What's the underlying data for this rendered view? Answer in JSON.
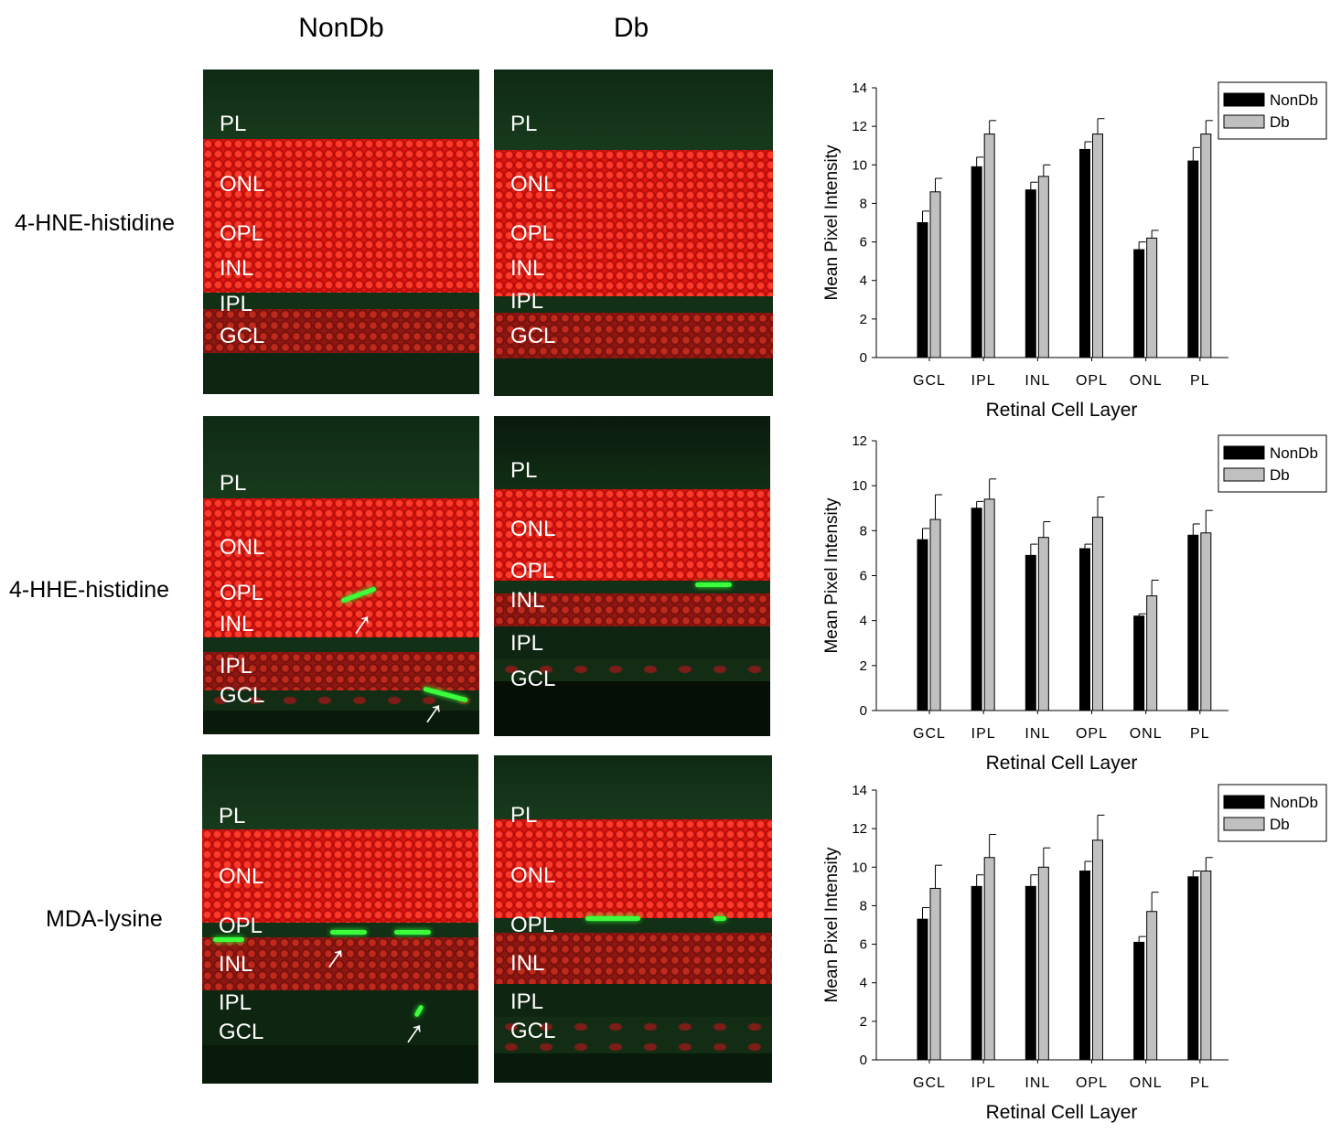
{
  "column_headers": [
    "NonDb",
    "Db"
  ],
  "row_labels": [
    "4-HNE-histidine",
    "4-HHE-histidine",
    "MDA-lysine"
  ],
  "layer_labels": [
    "PL",
    "ONL",
    "OPL",
    "INL",
    "IPL",
    "GCL"
  ],
  "colors": {
    "nondb": "#000000",
    "db": "#c0c0c0",
    "nuclei": "#e0140f",
    "stain": "#3cff3c"
  },
  "chart_data": [
    {
      "type": "bar",
      "categories": [
        "GCL",
        "IPL",
        "INL",
        "OPL",
        "ONL",
        "PL"
      ],
      "series": [
        {
          "name": "NonDb",
          "values": [
            7.0,
            9.9,
            8.7,
            10.8,
            5.6,
            10.2
          ],
          "errors": [
            0.6,
            0.5,
            0.4,
            0.4,
            0.4,
            0.7
          ]
        },
        {
          "name": "Db",
          "values": [
            8.6,
            11.6,
            9.4,
            11.6,
            6.2,
            11.6
          ],
          "errors": [
            0.7,
            0.7,
            0.6,
            0.8,
            0.4,
            0.7
          ]
        }
      ],
      "xlabel": "Retinal Cell Layer",
      "ylabel": "Mean Pixel Intensity",
      "ylim": [
        0,
        14
      ],
      "yticks": [
        0,
        2,
        4,
        6,
        8,
        10,
        12,
        14
      ],
      "legend": "top-right"
    },
    {
      "type": "bar",
      "categories": [
        "GCL",
        "IPL",
        "INL",
        "OPL",
        "ONL",
        "PL"
      ],
      "series": [
        {
          "name": "NonDb",
          "values": [
            7.6,
            9.0,
            6.9,
            7.2,
            4.2,
            7.8
          ],
          "errors": [
            0.5,
            0.3,
            0.5,
            0.2,
            0.1,
            0.5
          ]
        },
        {
          "name": "Db",
          "values": [
            8.5,
            9.4,
            7.7,
            8.6,
            5.1,
            7.9
          ],
          "errors": [
            1.1,
            0.9,
            0.7,
            0.9,
            0.7,
            1.0
          ]
        }
      ],
      "xlabel": "Retinal Cell Layer",
      "ylabel": "Mean Pixel Intensity",
      "ylim": [
        0,
        12
      ],
      "yticks": [
        0,
        2,
        4,
        6,
        8,
        10,
        12
      ],
      "legend": "top-right"
    },
    {
      "type": "bar",
      "categories": [
        "GCL",
        "IPL",
        "INL",
        "OPL",
        "ONL",
        "PL"
      ],
      "series": [
        {
          "name": "NonDb",
          "values": [
            7.3,
            9.0,
            9.0,
            9.8,
            6.1,
            9.5
          ],
          "errors": [
            0.6,
            0.6,
            0.6,
            0.5,
            0.3,
            0.3
          ]
        },
        {
          "name": "Db",
          "values": [
            8.9,
            10.5,
            10.0,
            11.4,
            7.7,
            9.8
          ],
          "errors": [
            1.2,
            1.2,
            1.0,
            1.3,
            1.0,
            0.7
          ]
        }
      ],
      "xlabel": "Retinal Cell Layer",
      "ylabel": "Mean Pixel Intensity",
      "ylim": [
        0,
        14
      ],
      "yticks": [
        0,
        2,
        4,
        6,
        8,
        10,
        12,
        14
      ],
      "legend": "top-right"
    }
  ]
}
